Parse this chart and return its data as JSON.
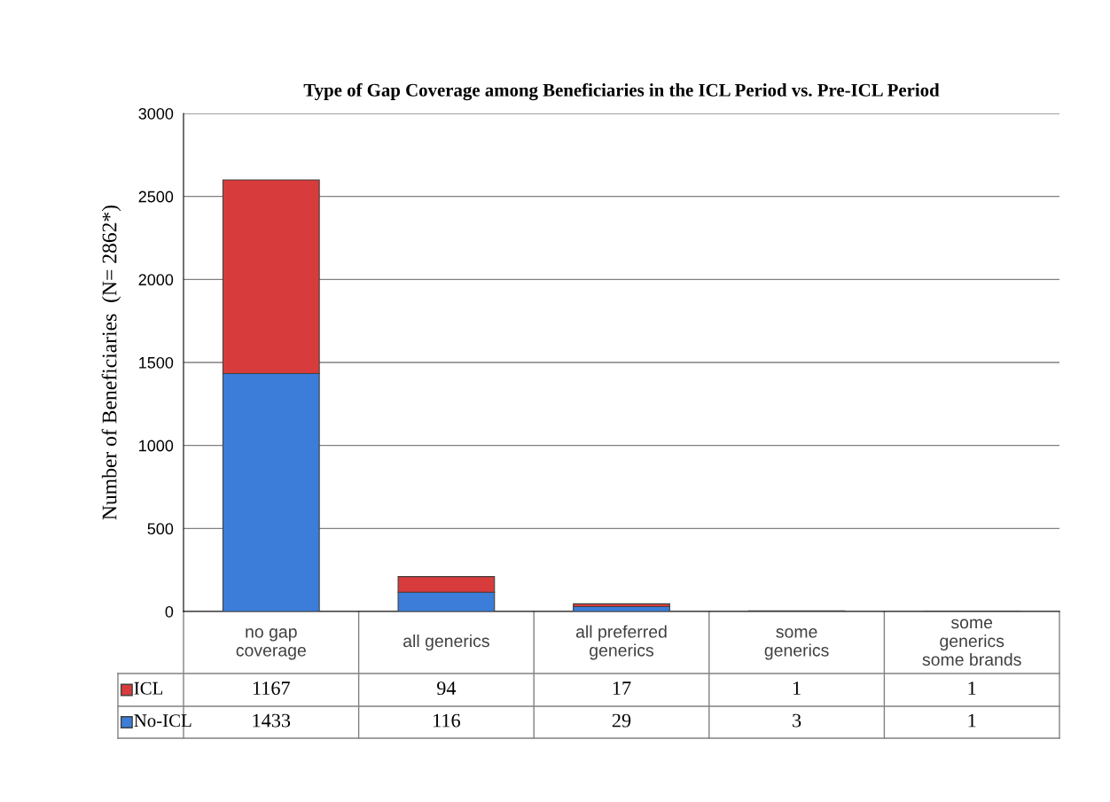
{
  "chart_data": {
    "type": "bar",
    "title": "Type of Gap Coverage among Beneficiaries in the ICL Period vs. Pre-ICL Period",
    "ylabel": "Number of Beneficiaries  (N= 2862*)",
    "categories": [
      "no gap\ncoverage",
      "all generics",
      "all preferred\ngenerics",
      "some\ngenerics",
      "some\ngenerics\nsome brands"
    ],
    "stacked": true,
    "series": [
      {
        "name": "No-ICL",
        "color": "#3b7dd8",
        "values": [
          1433,
          116,
          29,
          3,
          1
        ]
      },
      {
        "name": "ICL",
        "color": "#d83b3b",
        "values": [
          1167,
          94,
          17,
          1,
          1
        ]
      }
    ],
    "ylim": [
      0,
      3000
    ],
    "yticks": [
      0,
      500,
      1000,
      1500,
      2000,
      2500,
      3000
    ],
    "grid": "y",
    "data_labels": true,
    "legend": "bottom left"
  }
}
